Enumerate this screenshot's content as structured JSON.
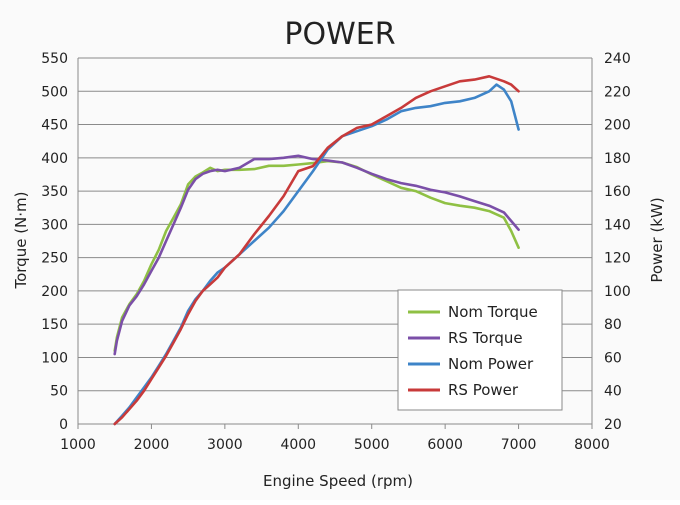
{
  "chart_data": {
    "type": "line",
    "title": "POWER",
    "xlabel": "Engine Speed (rpm)",
    "ylabel_left": "Torque (N·m)",
    "ylabel_right": "Power (kW)",
    "xlim": [
      1000,
      8000
    ],
    "xticks": [
      1000,
      2000,
      3000,
      4000,
      5000,
      6000,
      7000,
      8000
    ],
    "ylim_left": [
      0,
      550
    ],
    "yticks_left": [
      0,
      50,
      100,
      150,
      200,
      250,
      300,
      350,
      400,
      450,
      500,
      550
    ],
    "ylim_right": [
      20,
      240
    ],
    "yticks_right": [
      20,
      40,
      60,
      80,
      100,
      120,
      140,
      160,
      180,
      200,
      220,
      240
    ],
    "grid": "horizontal",
    "legend_position": "bottom-right",
    "series": [
      {
        "name": "Nom Torque",
        "axis": "left",
        "color": "#8fc044",
        "x": [
          1500,
          1530,
          1600,
          1700,
          1800,
          1900,
          2000,
          2100,
          2200,
          2300,
          2400,
          2500,
          2600,
          2700,
          2800,
          2900,
          3000,
          3200,
          3400,
          3600,
          3800,
          4000,
          4200,
          4400,
          4600,
          4800,
          5000,
          5200,
          5400,
          5600,
          5800,
          6000,
          6200,
          6400,
          6600,
          6800,
          6900,
          7000
        ],
        "y": [
          110,
          130,
          160,
          180,
          195,
          215,
          240,
          262,
          290,
          310,
          330,
          360,
          372,
          378,
          385,
          380,
          382,
          382,
          383,
          388,
          388,
          390,
          392,
          395,
          393,
          386,
          375,
          365,
          355,
          350,
          340,
          332,
          328,
          325,
          320,
          310,
          290,
          265
        ]
      },
      {
        "name": "RS Torque",
        "axis": "left",
        "color": "#7b4fa8",
        "x": [
          1500,
          1530,
          1600,
          1700,
          1800,
          1900,
          2000,
          2100,
          2200,
          2300,
          2400,
          2500,
          2600,
          2700,
          2800,
          2900,
          3000,
          3200,
          3400,
          3600,
          3800,
          4000,
          4200,
          4400,
          4600,
          4800,
          5000,
          5200,
          5400,
          5600,
          5800,
          6000,
          6200,
          6400,
          6600,
          6800,
          6900,
          7000
        ],
        "y": [
          105,
          125,
          155,
          178,
          192,
          210,
          230,
          250,
          275,
          300,
          325,
          352,
          368,
          376,
          380,
          382,
          380,
          385,
          398,
          398,
          400,
          403,
          398,
          396,
          393,
          385,
          376,
          368,
          362,
          358,
          352,
          348,
          342,
          335,
          328,
          318,
          305,
          292
        ]
      },
      {
        "name": "Nom Power",
        "axis": "right",
        "color": "#3e84c8",
        "x": [
          1500,
          1600,
          1700,
          1800,
          1900,
          2000,
          2100,
          2200,
          2300,
          2400,
          2500,
          2600,
          2700,
          2800,
          2900,
          3000,
          3200,
          3400,
          3600,
          3800,
          4000,
          4200,
          4400,
          4600,
          4800,
          5000,
          5200,
          5400,
          5600,
          5800,
          6000,
          6200,
          6400,
          6600,
          6700,
          6800,
          6900,
          7000
        ],
        "y": [
          20,
          25,
          30,
          36,
          42,
          48,
          55,
          62,
          70,
          78,
          88,
          95,
          100,
          106,
          111,
          114,
          122,
          130,
          138,
          148,
          160,
          172,
          185,
          193,
          196,
          199,
          203,
          208,
          210,
          211,
          213,
          214,
          216,
          220,
          224,
          221,
          214,
          197
        ]
      },
      {
        "name": "RS Power",
        "axis": "right",
        "color": "#c83a3a",
        "x": [
          1500,
          1600,
          1700,
          1800,
          1900,
          2000,
          2100,
          2200,
          2300,
          2400,
          2500,
          2600,
          2700,
          2800,
          2900,
          3000,
          3200,
          3400,
          3600,
          3800,
          4000,
          4200,
          4400,
          4600,
          4800,
          5000,
          5200,
          5400,
          5600,
          5800,
          6000,
          6200,
          6400,
          6600,
          6800,
          6900,
          7000
        ],
        "y": [
          20,
          24,
          29,
          34,
          40,
          47,
          54,
          61,
          69,
          77,
          86,
          94,
          100,
          104,
          108,
          114,
          122,
          134,
          145,
          157,
          172,
          175,
          186,
          193,
          198,
          200,
          205,
          210,
          216,
          220,
          223,
          226,
          227,
          229,
          226,
          224,
          220
        ]
      }
    ]
  }
}
